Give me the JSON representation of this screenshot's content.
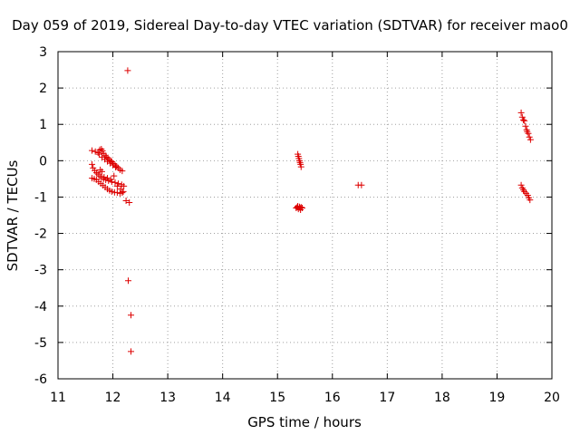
{
  "chart_data": {
    "type": "scatter",
    "title": "Day 059 of 2019, Sidereal Day-to-day VTEC variation (SDTVAR) for receiver mao0",
    "xlabel": "GPS time / hours",
    "ylabel": "SDTVAR / TECUs",
    "xlim": [
      11,
      20
    ],
    "ylim": [
      -6,
      3
    ],
    "x_ticks": [
      11,
      12,
      13,
      14,
      15,
      16,
      17,
      18,
      19,
      20
    ],
    "y_ticks": [
      -6,
      -5,
      -4,
      -3,
      -2,
      -1,
      0,
      1,
      2,
      3
    ],
    "x_tick_labels": [
      "11",
      "12",
      "13",
      "14",
      "15",
      "16",
      "17",
      "18",
      "19",
      "20"
    ],
    "y_tick_labels": [
      "-6",
      "-5",
      "-4",
      "-3",
      "-2",
      "-1",
      "0",
      "1",
      "2",
      "3"
    ],
    "grid": true,
    "marker": "+",
    "marker_color": "#dd0000",
    "series": [
      {
        "name": "mao0",
        "points": [
          [
            11.62,
            0.28
          ],
          [
            11.68,
            0.25
          ],
          [
            11.73,
            0.22
          ],
          [
            11.76,
            0.3
          ],
          [
            11.79,
            0.32
          ],
          [
            11.81,
            0.27
          ],
          [
            11.83,
            0.2
          ],
          [
            11.86,
            0.14
          ],
          [
            11.88,
            0.1
          ],
          [
            11.91,
            0.08
          ],
          [
            11.93,
            0.03
          ],
          [
            11.96,
            0.0
          ],
          [
            11.98,
            -0.03
          ],
          [
            12.01,
            -0.08
          ],
          [
            12.04,
            -0.12
          ],
          [
            12.07,
            -0.16
          ],
          [
            12.1,
            -0.2
          ],
          [
            12.13,
            -0.25
          ],
          [
            12.17,
            -0.28
          ],
          [
            11.75,
            0.18
          ],
          [
            11.8,
            0.1
          ],
          [
            11.85,
            0.04
          ],
          [
            11.9,
            -0.02
          ],
          [
            11.95,
            -0.07
          ],
          [
            12.0,
            -0.12
          ],
          [
            12.05,
            -0.18
          ],
          [
            11.62,
            -0.1
          ],
          [
            11.64,
            -0.2
          ],
          [
            11.67,
            -0.27
          ],
          [
            11.7,
            -0.33
          ],
          [
            11.73,
            -0.37
          ],
          [
            11.76,
            -0.42
          ],
          [
            11.79,
            -0.46
          ],
          [
            11.83,
            -0.5
          ],
          [
            11.87,
            -0.53
          ],
          [
            11.92,
            -0.55
          ],
          [
            11.98,
            -0.58
          ],
          [
            12.04,
            -0.6
          ],
          [
            12.1,
            -0.63
          ],
          [
            12.16,
            -0.66
          ],
          [
            12.2,
            -0.7
          ],
          [
            11.62,
            -0.48
          ],
          [
            11.66,
            -0.5
          ],
          [
            11.7,
            -0.52
          ],
          [
            11.74,
            -0.58
          ],
          [
            11.78,
            -0.63
          ],
          [
            11.82,
            -0.68
          ],
          [
            11.86,
            -0.73
          ],
          [
            11.9,
            -0.78
          ],
          [
            11.94,
            -0.82
          ],
          [
            11.98,
            -0.85
          ],
          [
            12.03,
            -0.87
          ],
          [
            12.08,
            -0.88
          ],
          [
            12.13,
            -0.9
          ],
          [
            12.17,
            -0.88
          ],
          [
            11.77,
            -0.25
          ],
          [
            11.8,
            -0.3
          ],
          [
            11.84,
            -0.45
          ],
          [
            11.9,
            -0.48
          ],
          [
            11.96,
            -0.52
          ],
          [
            12.02,
            -0.42
          ],
          [
            12.08,
            -0.7
          ],
          [
            12.14,
            -0.78
          ],
          [
            12.19,
            -0.85
          ],
          [
            12.24,
            -1.1
          ],
          [
            12.3,
            -1.15
          ],
          [
            12.27,
            2.48
          ],
          [
            12.28,
            -3.3
          ],
          [
            12.33,
            -4.25
          ],
          [
            12.33,
            -5.25
          ],
          [
            15.37,
            0.18
          ],
          [
            15.38,
            0.12
          ],
          [
            15.39,
            0.06
          ],
          [
            15.4,
            0.0
          ],
          [
            15.41,
            -0.05
          ],
          [
            15.42,
            -0.1
          ],
          [
            15.43,
            -0.17
          ],
          [
            15.34,
            -1.3
          ],
          [
            15.36,
            -1.28
          ],
          [
            15.38,
            -1.33
          ],
          [
            15.4,
            -1.27
          ],
          [
            15.41,
            -1.3
          ],
          [
            15.42,
            -1.35
          ],
          [
            15.43,
            -1.28
          ],
          [
            15.45,
            -1.3
          ],
          [
            15.37,
            -1.25
          ],
          [
            16.47,
            -0.67
          ],
          [
            16.53,
            -0.67
          ],
          [
            19.44,
            1.32
          ],
          [
            19.46,
            1.2
          ],
          [
            19.48,
            1.12
          ],
          [
            19.5,
            1.1
          ],
          [
            19.52,
            0.95
          ],
          [
            19.54,
            0.85
          ],
          [
            19.55,
            0.8
          ],
          [
            19.57,
            0.75
          ],
          [
            19.59,
            0.65
          ],
          [
            19.61,
            0.58
          ],
          [
            19.44,
            -0.67
          ],
          [
            19.46,
            -0.75
          ],
          [
            19.48,
            -0.8
          ],
          [
            19.5,
            -0.85
          ],
          [
            19.53,
            -0.9
          ],
          [
            19.56,
            -0.95
          ],
          [
            19.58,
            -1.02
          ],
          [
            19.6,
            -1.08
          ]
        ]
      }
    ]
  }
}
